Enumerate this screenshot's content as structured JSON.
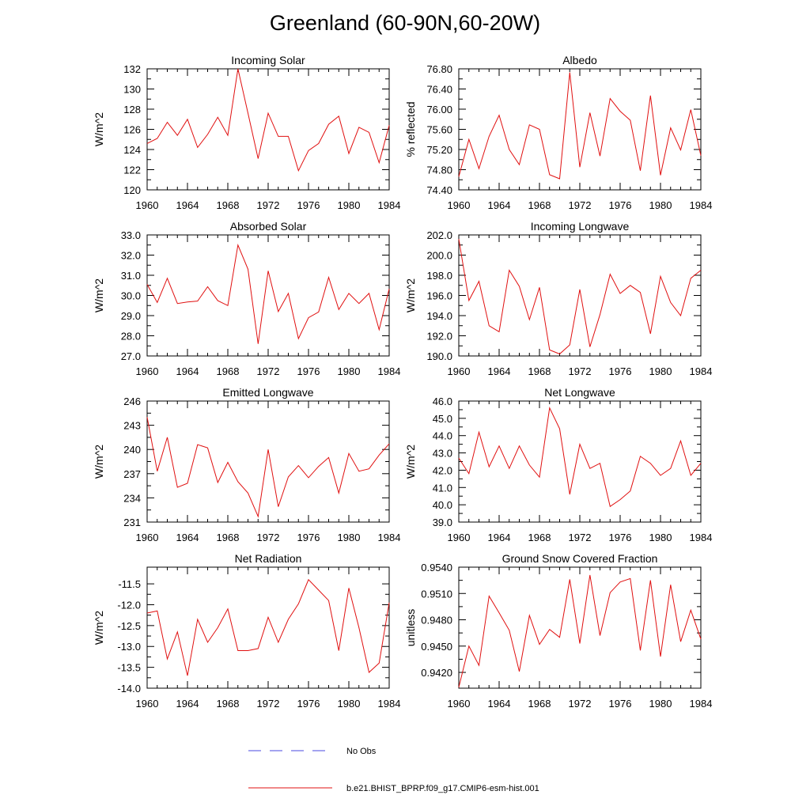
{
  "title": "Greenland (60-90N,60-20W)",
  "legend": [
    {
      "label": "No Obs",
      "color": "#4a4ae0",
      "dash": true
    },
    {
      "label": "b.e21.BHIST_BPRP.f09_g17.CMIP6-esm-hist.001",
      "color": "#e01010",
      "dash": false
    }
  ],
  "colors": {
    "series": "#e01010",
    "obs": "#4a4ae0"
  },
  "chart_data": [
    {
      "type": "line",
      "title": "Incoming Solar",
      "ylabel": "W/m^2",
      "xlim": [
        1960,
        1984
      ],
      "xticks": [
        "1960",
        "1964",
        "1968",
        "1972",
        "1976",
        "1980",
        "1984"
      ],
      "ylim": [
        120,
        132
      ],
      "yticks": [
        "120",
        "122",
        "124",
        "126",
        "128",
        "130",
        "132"
      ],
      "x": [
        1960,
        1961,
        1962,
        1963,
        1964,
        1965,
        1966,
        1967,
        1968,
        1969,
        1970,
        1971,
        1972,
        1973,
        1974,
        1975,
        1976,
        1977,
        1978,
        1979,
        1980,
        1981,
        1982,
        1983,
        1984
      ],
      "series": [
        {
          "values": [
            124.6,
            125.1,
            126.7,
            125.4,
            127.0,
            124.2,
            125.5,
            127.2,
            125.4,
            132.0,
            127.6,
            123.1,
            127.6,
            125.3,
            125.3,
            121.9,
            123.9,
            124.6,
            126.5,
            127.3,
            123.6,
            126.2,
            125.7,
            122.7,
            126.4
          ]
        }
      ]
    },
    {
      "type": "line",
      "title": "Albedo",
      "ylabel": "% reflected",
      "xlim": [
        1960,
        1984
      ],
      "xticks": [
        "1960",
        "1964",
        "1968",
        "1972",
        "1976",
        "1980",
        "1984"
      ],
      "ylim": [
        74.4,
        76.8
      ],
      "yticks": [
        "74.40",
        "74.80",
        "75.20",
        "75.60",
        "76.00",
        "76.40",
        "76.80"
      ],
      "x": [
        1960,
        1961,
        1962,
        1963,
        1964,
        1965,
        1966,
        1967,
        1968,
        1969,
        1970,
        1971,
        1972,
        1973,
        1974,
        1975,
        1976,
        1977,
        1978,
        1979,
        1980,
        1981,
        1982,
        1983,
        1984
      ],
      "series": [
        {
          "values": [
            74.66,
            75.4,
            74.82,
            75.46,
            75.88,
            75.2,
            74.9,
            75.69,
            75.6,
            74.7,
            74.62,
            76.73,
            74.85,
            75.93,
            75.07,
            76.21,
            75.96,
            75.78,
            74.78,
            76.27,
            74.69,
            75.63,
            75.19,
            75.99,
            75.08
          ]
        }
      ]
    },
    {
      "type": "line",
      "title": "Absorbed Solar",
      "ylabel": "W/m^2",
      "xlim": [
        1960,
        1984
      ],
      "xticks": [
        "1960",
        "1964",
        "1968",
        "1972",
        "1976",
        "1980",
        "1984"
      ],
      "ylim": [
        27.0,
        33.0
      ],
      "yticks": [
        "27.0",
        "28.0",
        "29.0",
        "30.0",
        "31.0",
        "32.0",
        "33.0"
      ],
      "x": [
        1960,
        1961,
        1962,
        1963,
        1964,
        1965,
        1966,
        1967,
        1968,
        1969,
        1970,
        1971,
        1972,
        1973,
        1974,
        1975,
        1976,
        1977,
        1978,
        1979,
        1980,
        1981,
        1982,
        1983,
        1984
      ],
      "series": [
        {
          "values": [
            30.55,
            29.65,
            30.85,
            29.6,
            29.68,
            29.72,
            30.43,
            29.74,
            29.5,
            32.5,
            31.3,
            27.6,
            31.22,
            29.2,
            30.1,
            27.86,
            28.9,
            29.18,
            30.9,
            29.3,
            30.1,
            29.6,
            30.1,
            28.3,
            30.33
          ]
        }
      ]
    },
    {
      "type": "line",
      "title": "Incoming Longwave",
      "ylabel": "W/m^2",
      "xlim": [
        1960,
        1984
      ],
      "xticks": [
        "1960",
        "1964",
        "1968",
        "1972",
        "1976",
        "1980",
        "1984"
      ],
      "ylim": [
        190.0,
        202.0
      ],
      "yticks": [
        "190.0",
        "192.0",
        "194.0",
        "196.0",
        "198.0",
        "200.0",
        "202.0"
      ],
      "x": [
        1960,
        1961,
        1962,
        1963,
        1964,
        1965,
        1966,
        1967,
        1968,
        1969,
        1970,
        1971,
        1972,
        1973,
        1974,
        1975,
        1976,
        1977,
        1978,
        1979,
        1980,
        1981,
        1982,
        1983,
        1984
      ],
      "series": [
        {
          "values": [
            201.6,
            195.5,
            197.4,
            193.0,
            192.4,
            198.5,
            196.9,
            193.6,
            196.8,
            190.6,
            190.2,
            191.1,
            196.6,
            190.9,
            194.1,
            198.1,
            196.2,
            197.0,
            196.3,
            192.2,
            197.9,
            195.3,
            194.0,
            197.7,
            198.5
          ]
        }
      ]
    },
    {
      "type": "line",
      "title": "Emitted Longwave",
      "ylabel": "W/m^2",
      "xlim": [
        1960,
        1984
      ],
      "xticks": [
        "1960",
        "1964",
        "1968",
        "1972",
        "1976",
        "1980",
        "1984"
      ],
      "ylim": [
        231,
        246
      ],
      "yticks": [
        "231",
        "234",
        "237",
        "240",
        "243",
        "246"
      ],
      "x": [
        1960,
        1961,
        1962,
        1963,
        1964,
        1965,
        1966,
        1967,
        1968,
        1969,
        1970,
        1971,
        1972,
        1973,
        1974,
        1975,
        1976,
        1977,
        1978,
        1979,
        1980,
        1981,
        1982,
        1983,
        1984
      ],
      "series": [
        {
          "values": [
            244.0,
            237.3,
            241.5,
            235.3,
            235.8,
            240.6,
            240.2,
            235.9,
            238.4,
            236.0,
            234.6,
            231.7,
            240.0,
            232.9,
            236.6,
            238.0,
            236.5,
            237.9,
            239.0,
            234.6,
            239.5,
            237.3,
            237.6,
            239.3,
            240.7
          ]
        }
      ]
    },
    {
      "type": "line",
      "title": "Net Longwave",
      "ylabel": "W/m^2",
      "xlim": [
        1960,
        1984
      ],
      "xticks": [
        "1960",
        "1964",
        "1968",
        "1972",
        "1976",
        "1980",
        "1984"
      ],
      "ylim": [
        39.0,
        46.0
      ],
      "yticks": [
        "39.0",
        "40.0",
        "41.0",
        "42.0",
        "43.0",
        "44.0",
        "45.0",
        "46.0"
      ],
      "x": [
        1960,
        1961,
        1962,
        1963,
        1964,
        1965,
        1966,
        1967,
        1968,
        1969,
        1970,
        1971,
        1972,
        1973,
        1974,
        1975,
        1976,
        1977,
        1978,
        1979,
        1980,
        1981,
        1982,
        1983,
        1984
      ],
      "series": [
        {
          "values": [
            42.7,
            41.8,
            44.2,
            42.2,
            43.4,
            42.1,
            43.4,
            42.3,
            41.6,
            45.6,
            44.4,
            40.6,
            43.5,
            42.1,
            42.4,
            39.9,
            40.3,
            40.8,
            42.8,
            42.4,
            41.7,
            42.1,
            43.7,
            41.7,
            42.4
          ]
        }
      ]
    },
    {
      "type": "line",
      "title": "Net Radiation",
      "ylabel": "W/m^2",
      "xlim": [
        1960,
        1984
      ],
      "xticks": [
        "1960",
        "1964",
        "1968",
        "1972",
        "1976",
        "1980",
        "1984"
      ],
      "ylim": [
        -14.0,
        -11.1
      ],
      "yticks": [
        "-14.0",
        "-13.5",
        "-13.0",
        "-12.5",
        "-12.0",
        "-11.5"
      ],
      "ytick_values": [
        -14.0,
        -13.5,
        -13.0,
        -12.5,
        -12.0,
        -11.5
      ],
      "x": [
        1960,
        1961,
        1962,
        1963,
        1964,
        1965,
        1966,
        1967,
        1968,
        1969,
        1970,
        1971,
        1972,
        1973,
        1974,
        1975,
        1976,
        1977,
        1978,
        1979,
        1980,
        1981,
        1982,
        1983,
        1984
      ],
      "series": [
        {
          "values": [
            -12.2,
            -12.15,
            -13.3,
            -12.65,
            -13.7,
            -12.35,
            -12.9,
            -12.55,
            -12.1,
            -13.1,
            -13.1,
            -13.05,
            -12.3,
            -12.9,
            -12.35,
            -11.98,
            -11.4,
            -11.65,
            -11.9,
            -13.1,
            -11.6,
            -12.55,
            -13.62,
            -13.4,
            -11.95
          ]
        }
      ]
    },
    {
      "type": "line",
      "title": "Ground Snow Covered Fraction",
      "ylabel": "unitless",
      "xlim": [
        1960,
        1984
      ],
      "xticks": [
        "1960",
        "1964",
        "1968",
        "1972",
        "1976",
        "1980",
        "1984"
      ],
      "ylim": [
        0.9402,
        0.954
      ],
      "yticks": [
        "0.9420",
        "0.9450",
        "0.9480",
        "0.9510",
        "0.9540"
      ],
      "ytick_values": [
        0.942,
        0.945,
        0.948,
        0.951,
        0.954
      ],
      "x": [
        1960,
        1961,
        1962,
        1963,
        1964,
        1965,
        1966,
        1967,
        1968,
        1969,
        1970,
        1971,
        1972,
        1973,
        1974,
        1975,
        1976,
        1977,
        1978,
        1979,
        1980,
        1981,
        1982,
        1983,
        1984
      ],
      "series": [
        {
          "values": [
            0.9403,
            0.945,
            0.9428,
            0.9507,
            0.9488,
            0.9468,
            0.9421,
            0.9485,
            0.9452,
            0.9469,
            0.946,
            0.9526,
            0.9453,
            0.9531,
            0.9462,
            0.9511,
            0.9523,
            0.9527,
            0.9445,
            0.9525,
            0.9438,
            0.952,
            0.9455,
            0.9491,
            0.9458
          ]
        }
      ]
    }
  ]
}
